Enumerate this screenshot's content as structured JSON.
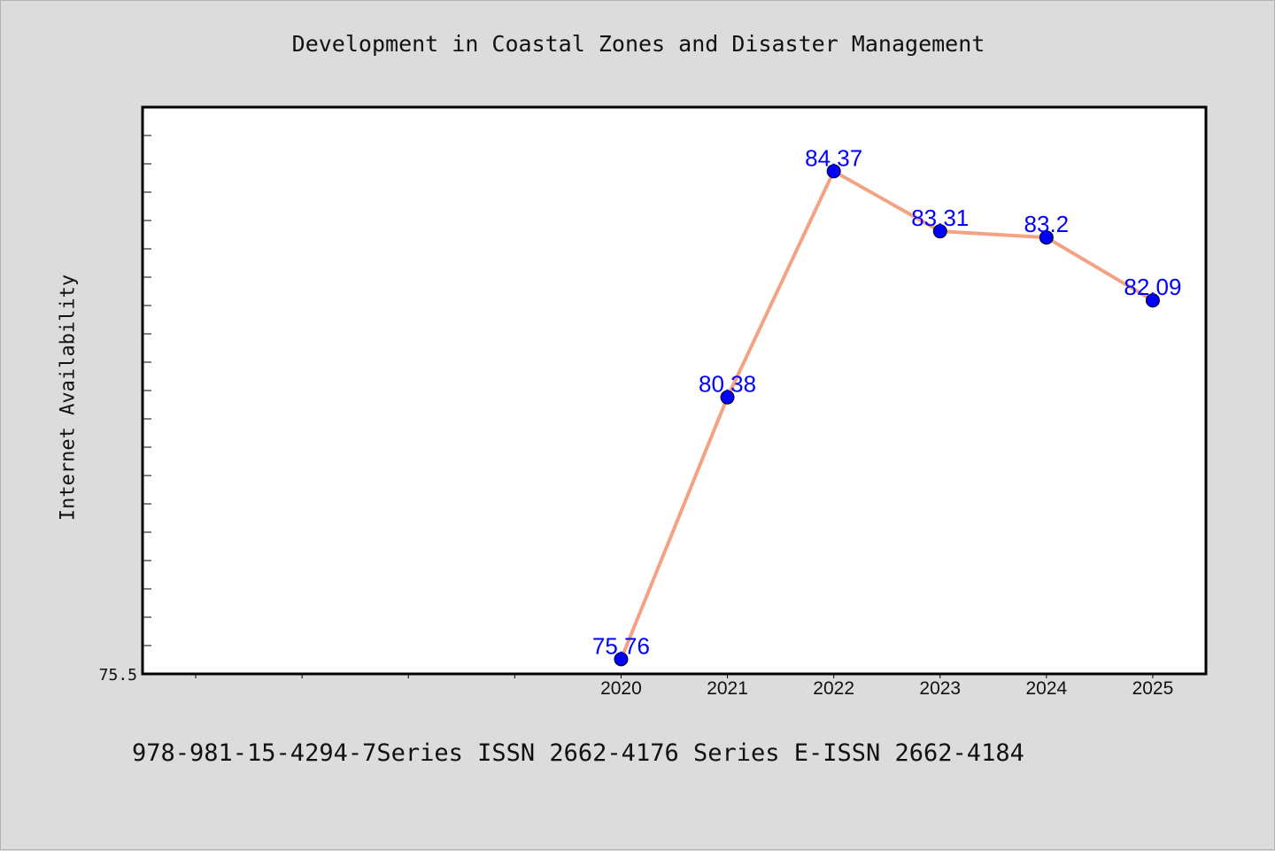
{
  "chart_data": {
    "type": "line",
    "title": "Development in Coastal Zones and Disaster Management",
    "xlabel": "",
    "ylabel": "Internet Availability",
    "x": [
      "2020",
      "2021",
      "2022",
      "2023",
      "2024",
      "2025"
    ],
    "series": [
      {
        "values": [
          75.76,
          80.38,
          84.37,
          83.31,
          83.2,
          82.09
        ],
        "labels": [
          "75.76",
          "80.38",
          "84.37",
          "83.31",
          "83.2",
          "82.09"
        ]
      }
    ],
    "x_positions": [
      2020,
      2021,
      2022,
      2023,
      2024,
      2025
    ],
    "xlim": [
      2015.5,
      2025.5
    ],
    "ylim": [
      75.5,
      85.5
    ],
    "y_tick_labels": [
      "75.5"
    ],
    "grid": false,
    "colors": {
      "line": "#f4a283",
      "marker": "#0000ff",
      "label": "#0000ff",
      "frame": "#000000",
      "plot_bg": "#ffffff"
    }
  },
  "footer": "978-981-15-4294-7Series ISSN 2662-4176 Series E-ISSN 2662-4184"
}
